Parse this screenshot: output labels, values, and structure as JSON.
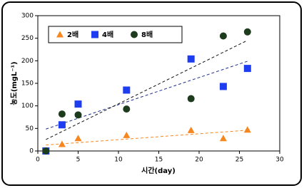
{
  "chart_data": {
    "type": "scatter",
    "x_label": "시간(day)",
    "y_label": "농도(mgL⁻¹)",
    "xlim": [
      0,
      30
    ],
    "xticks": [
      0,
      5,
      10,
      15,
      20,
      25,
      30
    ],
    "ylim": [
      0,
      300
    ],
    "yticks": [
      0,
      50,
      100,
      150,
      200,
      250,
      300
    ],
    "grid": false,
    "legend": "top-left",
    "trendline": true,
    "series": [
      {
        "name": "2배",
        "marker": "triangle",
        "color": "#f7861e",
        "trend_color": "#f7861e",
        "x": [
          1,
          3,
          5,
          11,
          19,
          23,
          26
        ],
        "values": [
          0,
          15,
          28,
          35,
          46,
          28,
          47
        ]
      },
      {
        "name": "4배",
        "marker": "square",
        "color": "#1e3cf0",
        "trend_color": "#1e2f8c",
        "x": [
          1,
          3,
          5,
          11,
          19,
          23,
          26
        ],
        "values": [
          0,
          58,
          104,
          135,
          204,
          143,
          183
        ]
      },
      {
        "name": "8배",
        "marker": "circle",
        "color": "#1d3b1d",
        "trend_color": "#111111",
        "x": [
          1,
          3,
          5,
          11,
          19,
          23,
          26
        ],
        "values": [
          0,
          82,
          80,
          93,
          116,
          255,
          264
        ]
      }
    ]
  }
}
